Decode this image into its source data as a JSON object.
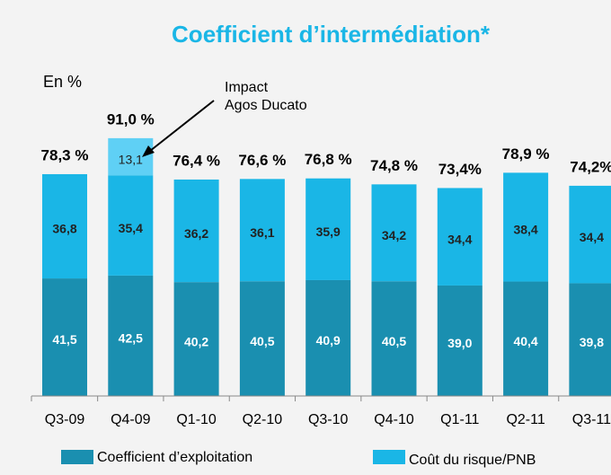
{
  "chart_data": {
    "type": "stacked_bar",
    "title": "Coefficient d’intermédiation*",
    "y_label": "En %",
    "categories": [
      "Q3-09",
      "Q4-09",
      "Q1-10",
      "Q2-10",
      "Q3-10",
      "Q4-10",
      "Q1-11",
      "Q2-11",
      "Q3-11"
    ],
    "series": [
      {
        "name": "Coefficient d’exploitation",
        "color": "#1a8fb0",
        "values": [
          41.5,
          42.5,
          40.2,
          40.5,
          40.9,
          40.5,
          39.0,
          40.4,
          39.8
        ],
        "value_labels": [
          "41,5",
          "42,5",
          "40,2",
          "40,5",
          "40,9",
          "40,5",
          "39,0",
          "40,4",
          "39,8"
        ]
      },
      {
        "name": "Coût du risque/PNB",
        "color": "#1ab6e6",
        "values": [
          36.8,
          35.4,
          36.2,
          36.1,
          35.9,
          34.2,
          34.4,
          38.4,
          34.4
        ],
        "value_labels": [
          "36,8",
          "35,4",
          "36,2",
          "36,1",
          "35,9",
          "34,2",
          "34,4",
          "38,4",
          "34,4"
        ]
      },
      {
        "color": "#5fd0f5",
        "values": [
          null,
          13.1,
          null,
          null,
          null,
          null,
          null,
          null,
          null
        ],
        "value_labels": [
          null,
          "13,1",
          null,
          null,
          null,
          null,
          null,
          null,
          null
        ]
      }
    ],
    "total_labels": [
      "78,3 %",
      "91,0 %",
      "76,4 %",
      "76,6 %",
      "76,8 %",
      "74,8 %",
      "73,4%",
      "78,9 %",
      "74,2%"
    ],
    "annotation": [
      "Impact",
      "Agos Ducato"
    ],
    "ylim": [
      0,
      100
    ]
  }
}
